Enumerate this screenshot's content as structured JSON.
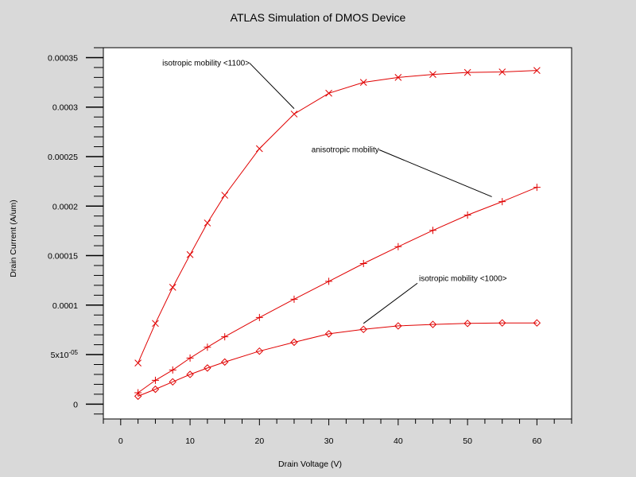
{
  "chart_data": {
    "type": "line",
    "title": "ATLAS Simulation of DMOS Device",
    "xlabel": "Drain Voltage (V)",
    "ylabel": "Drain Current (A/um)",
    "xlim": [
      -2.5,
      65
    ],
    "ylim": [
      -1.5e-05,
      0.00036
    ],
    "x_ticks": [
      0,
      10,
      20,
      30,
      40,
      50,
      60
    ],
    "x_tick_labels": [
      "0",
      "10",
      "20",
      "30",
      "40",
      "50",
      "60"
    ],
    "y_ticks": [
      0,
      5e-05,
      0.0001,
      0.00015,
      0.0002,
      0.00025,
      0.0003,
      0.00035
    ],
    "y_tick_labels": [
      {
        "base": "0"
      },
      {
        "base": "5x10",
        "exp": "-05"
      },
      {
        "base": "0.0001"
      },
      {
        "base": "0.00015"
      },
      {
        "base": "0.0002"
      },
      {
        "base": "0.00025"
      },
      {
        "base": "0.0003"
      },
      {
        "base": "0.00035"
      }
    ],
    "grid": false,
    "line_color": "#e00000",
    "series": [
      {
        "name": "isotropic mobility <1100>",
        "marker": "x",
        "x": [
          2.5,
          5,
          7.5,
          10,
          12.5,
          15,
          20,
          25,
          30,
          35,
          40,
          45,
          50,
          55,
          60
        ],
        "y": [
          4.15e-05,
          8.15e-05,
          0.000118,
          0.000151,
          0.000183,
          0.000211,
          0.000258,
          0.000293,
          0.000314,
          0.000325,
          0.00033,
          0.000333,
          0.000335,
          0.0003355,
          0.000337
        ]
      },
      {
        "name": "anisotropic mobility",
        "marker": "+",
        "x": [
          2.5,
          5,
          7.5,
          10,
          12.5,
          15,
          20,
          25,
          30,
          35,
          40,
          45,
          50,
          55,
          60
        ],
        "y": [
          1.15e-05,
          2.4e-05,
          3.45e-05,
          4.65e-05,
          5.75e-05,
          6.8e-05,
          8.75e-05,
          0.000106,
          0.000124,
          0.000142,
          0.000159,
          0.0001755,
          0.000191,
          0.0002045,
          0.000219
        ]
      },
      {
        "name": "isotropic mobility <1000>",
        "marker": "diamond",
        "x": [
          2.5,
          5,
          7.5,
          10,
          12.5,
          15,
          20,
          25,
          30,
          35,
          40,
          45,
          50,
          55,
          60
        ],
        "y": [
          8e-06,
          1.5e-05,
          2.25e-05,
          3e-05,
          3.65e-05,
          4.25e-05,
          5.35e-05,
          6.25e-05,
          7.1e-05,
          7.55e-05,
          7.9e-05,
          8.05e-05,
          8.15e-05,
          8.2e-05,
          8.2e-05
        ]
      }
    ],
    "annotations": [
      {
        "text": "isotropic mobility <1100>",
        "series": 0,
        "label_x": 6,
        "label_y": 0.000342,
        "end_x": 25,
        "end_y": 0.0002985
      },
      {
        "text": "anisotropic mobility",
        "series": 1,
        "label_x": 27.5,
        "label_y": 0.0002545,
        "end_x": 53.5,
        "end_y": 0.0002095
      },
      {
        "text": "isotropic mobility <1000>",
        "series": 2,
        "label_x": 43,
        "label_y": 0.0001245,
        "end_x": 35,
        "end_y": 8.15e-05
      }
    ]
  }
}
